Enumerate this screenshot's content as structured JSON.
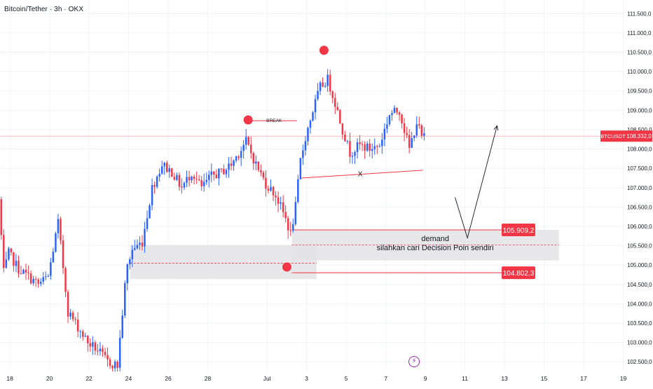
{
  "header": {
    "symbol_title": "Bitcoin/Tether · 3h · OKX"
  },
  "colors": {
    "up": "#2962ff",
    "down": "#f23645",
    "grid": "#f0f3fa",
    "zone": "#e3e3e6",
    "text": "#131722",
    "accent": "#f23645"
  },
  "icons": {
    "badge": "lightning-bolt-icon"
  },
  "chart_data": {
    "type": "candlestick",
    "symbol_label": "BTCUSDT",
    "last_price": 108332.0,
    "last_price_label": "108.332,0",
    "ylim": [
      102250,
      111850
    ],
    "y_ticks": [
      102500,
      103000,
      103500,
      104000,
      104500,
      105000,
      105500,
      106000,
      106500,
      107000,
      107500,
      108000,
      108500,
      109000,
      109500,
      110000,
      110500,
      111000,
      111500
    ],
    "y_tick_labels": [
      "102.500,0",
      "103.000,0",
      "103.500,0",
      "104.000,0",
      "104.500,0",
      "105.000,0",
      "105.500,0",
      "106.000,0",
      "106.500,0",
      "107.000,0",
      "107.500,0",
      "108.000,0",
      "108.500,0",
      "109.000,0",
      "109.500,0",
      "110.000,0",
      "110.500,0",
      "111.000,0",
      "111.500,0"
    ],
    "x_range": [
      "2025-06-17T12:00",
      "2025-07-19T03:00"
    ],
    "x_ticks": [
      {
        "t": "2025-06-18",
        "label": "18"
      },
      {
        "t": "2025-06-20",
        "label": "20"
      },
      {
        "t": "2025-06-22",
        "label": "22"
      },
      {
        "t": "2025-06-24",
        "label": "24"
      },
      {
        "t": "2025-06-26",
        "label": "26"
      },
      {
        "t": "2025-06-28",
        "label": "28"
      },
      {
        "t": "2025-07-01",
        "label": "Jul"
      },
      {
        "t": "2025-07-03",
        "label": "3"
      },
      {
        "t": "2025-07-05",
        "label": "5"
      },
      {
        "t": "2025-07-07",
        "label": "7"
      },
      {
        "t": "2025-07-09",
        "label": "9"
      },
      {
        "t": "2025-07-11",
        "label": "11"
      },
      {
        "t": "2025-07-13",
        "label": "13"
      },
      {
        "t": "2025-07-15",
        "label": "15"
      },
      {
        "t": "2025-07-17",
        "label": "17"
      },
      {
        "t": "2025-07-19",
        "label": "19"
      }
    ],
    "candle_interval_hours": 3,
    "path_waypoints": [
      {
        "t": "2025-06-17T12:00",
        "p": 106700
      },
      {
        "t": "2025-06-17T18:00",
        "p": 104800
      },
      {
        "t": "2025-06-18T00:00",
        "p": 105300
      },
      {
        "t": "2025-06-18T12:00",
        "p": 104900
      },
      {
        "t": "2025-06-19T00:00",
        "p": 104700
      },
      {
        "t": "2025-06-19T12:00",
        "p": 104500
      },
      {
        "t": "2025-06-20T00:00",
        "p": 104700
      },
      {
        "t": "2025-06-20T12:00",
        "p": 106100
      },
      {
        "t": "2025-06-21T00:00",
        "p": 103800
      },
      {
        "t": "2025-06-21T12:00",
        "p": 103400
      },
      {
        "t": "2025-06-22T00:00",
        "p": 103000
      },
      {
        "t": "2025-06-22T12:00",
        "p": 102800
      },
      {
        "t": "2025-06-23T00:00",
        "p": 102500
      },
      {
        "t": "2025-06-23T12:00",
        "p": 102400
      },
      {
        "t": "2025-06-23T23:00",
        "p": 104900
      },
      {
        "t": "2025-06-24T06:00",
        "p": 105400
      },
      {
        "t": "2025-06-24T18:00",
        "p": 105600
      },
      {
        "t": "2025-06-25T06:00",
        "p": 107000
      },
      {
        "t": "2025-06-25T18:00",
        "p": 107600
      },
      {
        "t": "2025-06-26T06:00",
        "p": 107400
      },
      {
        "t": "2025-06-26T18:00",
        "p": 107000
      },
      {
        "t": "2025-06-27T06:00",
        "p": 107400
      },
      {
        "t": "2025-06-27T18:00",
        "p": 107000
      },
      {
        "t": "2025-06-28T06:00",
        "p": 107300
      },
      {
        "t": "2025-06-28T18:00",
        "p": 107400
      },
      {
        "t": "2025-06-29T06:00",
        "p": 107600
      },
      {
        "t": "2025-06-29T18:00",
        "p": 108000
      },
      {
        "t": "2025-06-30T00:00",
        "p": 108200
      },
      {
        "t": "2025-06-30T12:00",
        "p": 107600
      },
      {
        "t": "2025-07-01T00:00",
        "p": 107100
      },
      {
        "t": "2025-07-01T12:00",
        "p": 106800
      },
      {
        "t": "2025-07-02T00:00",
        "p": 106200
      },
      {
        "t": "2025-07-02T06:00",
        "p": 105800
      },
      {
        "t": "2025-07-02T12:00",
        "p": 106500
      },
      {
        "t": "2025-07-02T18:00",
        "p": 107700
      },
      {
        "t": "2025-07-03T00:00",
        "p": 108300
      },
      {
        "t": "2025-07-03T09:00",
        "p": 109000
      },
      {
        "t": "2025-07-03T18:00",
        "p": 109600
      },
      {
        "t": "2025-07-04T03:00",
        "p": 109800
      },
      {
        "t": "2025-07-04T12:00",
        "p": 109200
      },
      {
        "t": "2025-07-04T21:00",
        "p": 108500
      },
      {
        "t": "2025-07-05T06:00",
        "p": 107900
      },
      {
        "t": "2025-07-05T18:00",
        "p": 108100
      },
      {
        "t": "2025-07-06T06:00",
        "p": 108000
      },
      {
        "t": "2025-07-06T18:00",
        "p": 108100
      },
      {
        "t": "2025-07-07T06:00",
        "p": 108900
      },
      {
        "t": "2025-07-07T18:00",
        "p": 109000
      },
      {
        "t": "2025-07-08T06:00",
        "p": 108000
      },
      {
        "t": "2025-07-08T15:00",
        "p": 108700
      },
      {
        "t": "2025-07-08T21:00",
        "p": 108300
      }
    ],
    "markers": [
      {
        "t": "2025-06-30T01:00",
        "p": 108750,
        "label": "BREAK"
      },
      {
        "t": "2025-07-03T21:00",
        "p": 110550,
        "label": ""
      },
      {
        "t": "2025-07-02T00:00",
        "p": 104950,
        "label": ""
      }
    ],
    "zones": [
      {
        "from": "2025-06-24T02:00",
        "to": "2025-07-03T12:00",
        "low": 104640,
        "high": 105520,
        "label": ""
      },
      {
        "from": "2025-07-02T06:00",
        "to": "2025-07-15T18:00",
        "low": 105120,
        "high": 105909.2,
        "label": "demand"
      }
    ],
    "zone_note": "silahkan cari Decision Poin sendiri",
    "levels": [
      {
        "from": "2025-07-02T06:00",
        "price": 105909.2,
        "label": "105.909,2"
      },
      {
        "from": "2025-07-02T06:00",
        "price": 104802.3,
        "label": "104.802,3"
      }
    ],
    "midlines": [
      {
        "from": "2025-06-24T02:00",
        "to": "2025-07-03T12:00",
        "price": 105050
      },
      {
        "from": "2025-07-02T06:00",
        "to": "2025-07-15T18:00",
        "price": 105520
      }
    ],
    "break_line": {
      "from": "2025-06-30T03:00",
      "to": "2025-07-02T12:00",
      "price": 108730
    },
    "x_line": {
      "from": "2025-07-02T18:00",
      "to": "2025-07-08T21:00",
      "p_from": 107250,
      "p_to": 107450,
      "label": "X"
    },
    "projection": [
      {
        "t": "2025-07-10T12:00",
        "p": 106750
      },
      {
        "t": "2025-07-11T03:00",
        "p": 105700
      },
      {
        "t": "2025-07-12T15:00",
        "p": 108600
      }
    ]
  }
}
